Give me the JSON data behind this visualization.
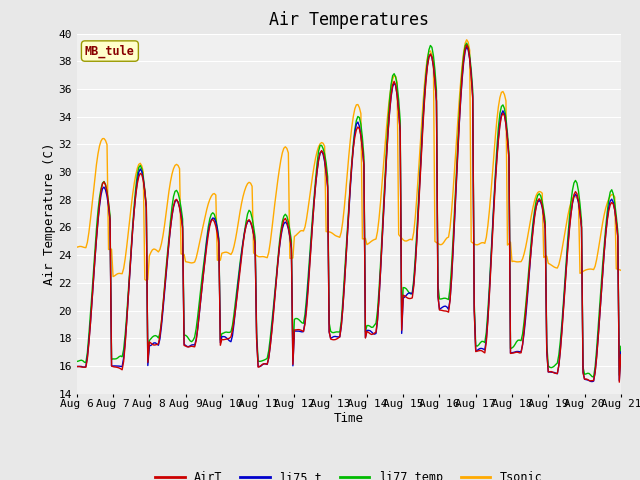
{
  "title": "Air Temperatures",
  "xlabel": "Time",
  "ylabel": "Air Temperature (C)",
  "ylim": [
    14,
    40
  ],
  "yticks": [
    14,
    16,
    18,
    20,
    22,
    24,
    26,
    28,
    30,
    32,
    34,
    36,
    38,
    40
  ],
  "x_labels": [
    "Aug 6",
    "Aug 7",
    "Aug 8",
    "Aug 9",
    "Aug 10",
    "Aug 11",
    "Aug 12",
    "Aug 13",
    "Aug 14",
    "Aug 15",
    "Aug 16",
    "Aug 17",
    "Aug 18",
    "Aug 19",
    "Aug 20",
    "Aug 21"
  ],
  "series": {
    "AirT": {
      "color": "#cc0000",
      "lw": 1.0
    },
    "li75_t": {
      "color": "#0000cc",
      "lw": 1.0
    },
    "li77_temp": {
      "color": "#00bb00",
      "lw": 1.0
    },
    "Tsonic": {
      "color": "#ffaa00",
      "lw": 1.0
    }
  },
  "legend_labels": [
    "AirT",
    "li75_t",
    "li77_temp",
    "Tsonic"
  ],
  "legend_colors": [
    "#cc0000",
    "#0000cc",
    "#00bb00",
    "#ffaa00"
  ],
  "site_label": "MB_tule",
  "site_label_color": "#880000",
  "site_label_bg": "#ffffcc",
  "background_color": "#e8e8e8",
  "plot_bg": "#f0f0f0",
  "grid_color": "#ffffff",
  "title_fontsize": 12,
  "axis_fontsize": 8,
  "n_days": 15,
  "pts_per_day": 24
}
